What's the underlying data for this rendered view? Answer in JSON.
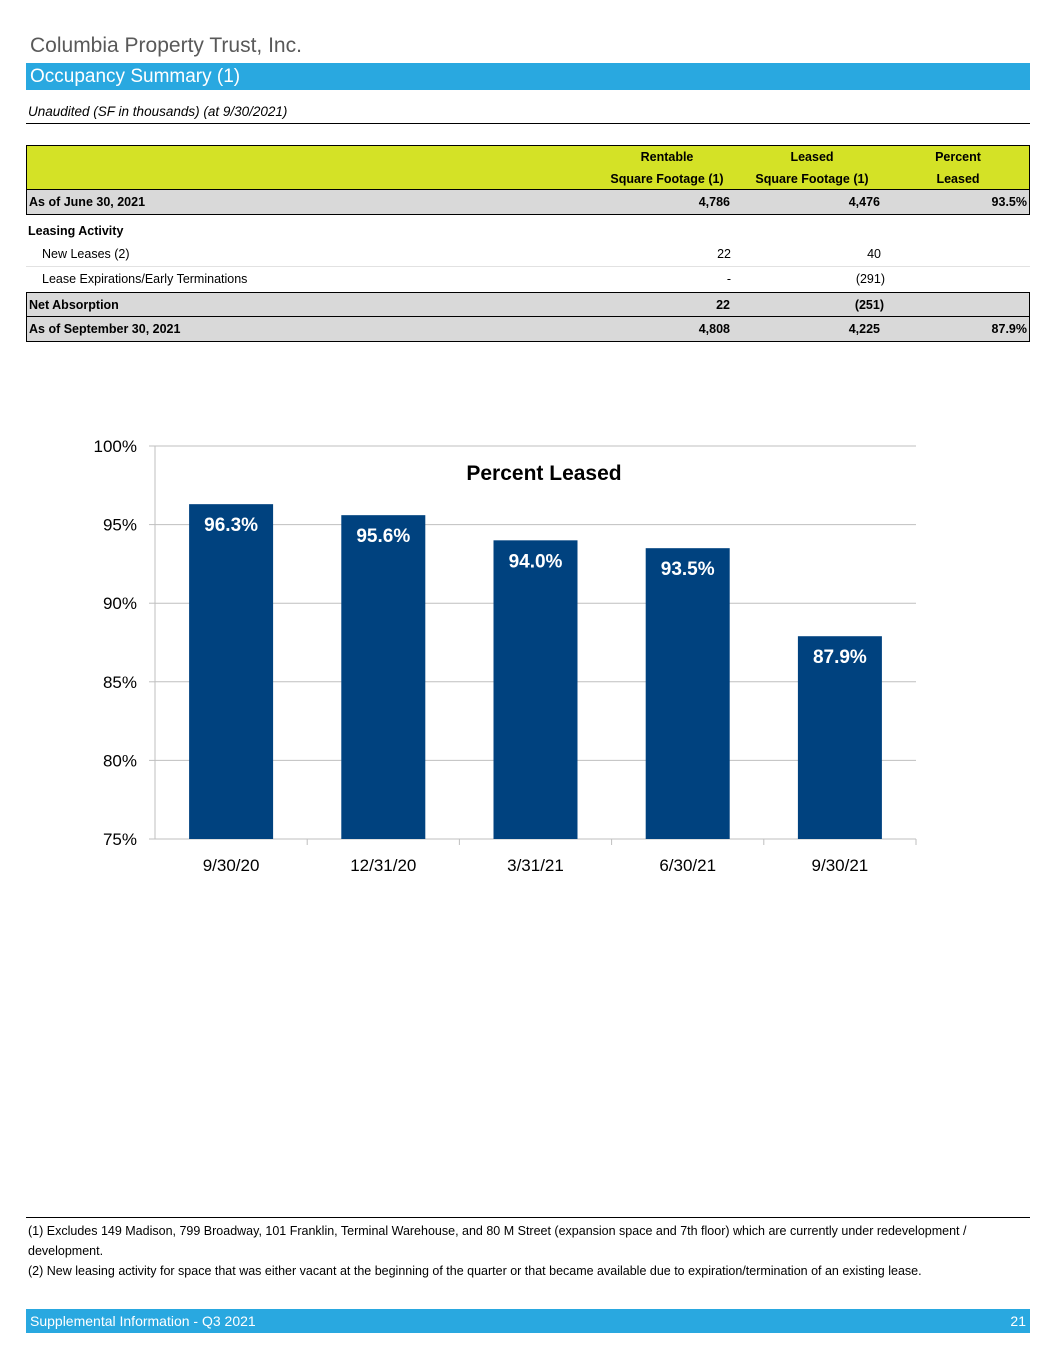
{
  "company": "Columbia Property Trust, Inc.",
  "section_title": "Occupancy Summary (1)",
  "subtitle": "Unaudited (SF in thousands) (at 9/30/2021)",
  "table": {
    "headers": {
      "col1_line1": "Rentable",
      "col1_line2": "Square Footage (1)",
      "col2_line1": "Leased",
      "col2_line2": "Square Footage (1)",
      "col3_line1": "Percent",
      "col3_line2": "Leased"
    },
    "rows": [
      {
        "label": "As of June 30, 2021",
        "rentable": "4,786",
        "leased": "4,476",
        "percent": "93.5%"
      },
      {
        "label": "Leasing Activity",
        "rentable": "",
        "leased": "",
        "percent": ""
      },
      {
        "label": "New Leases (2)",
        "rentable": "22",
        "leased": "40",
        "percent": ""
      },
      {
        "label": "Lease Expirations/Early Terminations",
        "rentable": "-",
        "leased": "(291)",
        "percent": ""
      },
      {
        "label": "Net Absorption",
        "rentable": "22",
        "leased": "(251)",
        "percent": ""
      },
      {
        "label": "As of September 30, 2021",
        "rentable": "4,808",
        "leased": "4,225",
        "percent": "87.9%"
      }
    ]
  },
  "chart_data": {
    "type": "bar",
    "title": "Percent Leased",
    "categories": [
      "9/30/20",
      "12/31/20",
      "3/31/21",
      "6/30/21",
      "9/30/21"
    ],
    "values": [
      96.3,
      95.6,
      94.0,
      93.5,
      87.9
    ],
    "data_labels": [
      "96.3%",
      "95.6%",
      "94.0%",
      "93.5%",
      "87.9%"
    ],
    "ylim": [
      75,
      100
    ],
    "yticks": [
      75,
      80,
      85,
      90,
      95,
      100
    ],
    "ytick_labels": [
      "75%",
      "80%",
      "85%",
      "90%",
      "95%",
      "100%"
    ],
    "grid": true,
    "bar_color": "#00427f"
  },
  "footnotes": {
    "note1": "(1) Excludes 149 Madison, 799 Broadway, 101 Franklin, Terminal Warehouse, and 80 M Street (expansion space and 7th floor) which are currently under redevelopment / development.",
    "note2": "(2) New leasing activity for space that was either vacant at the beginning of the quarter or that became available due to expiration/termination of an existing lease."
  },
  "footer": {
    "left": "Supplemental Information - Q3 2021",
    "page": "21"
  }
}
